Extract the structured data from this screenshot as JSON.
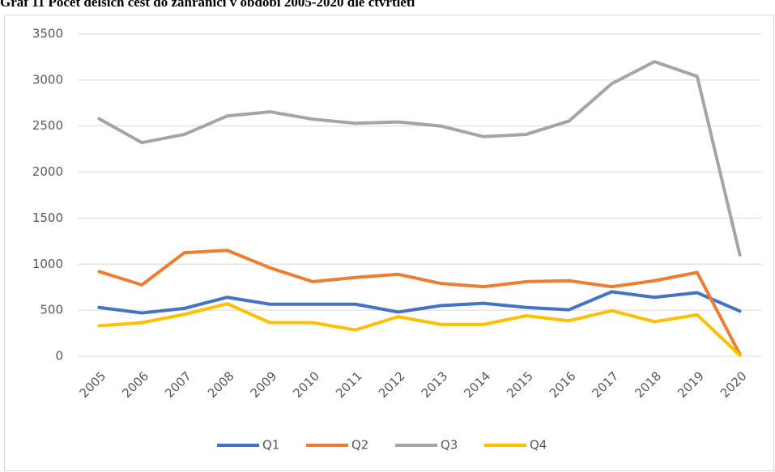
{
  "chart_data": {
    "type": "line",
    "title": "Graf 11 Počet delších cest do zahraničí v období 2005-2020 dle čtvrtletí",
    "categories": [
      "2005",
      "2006",
      "2007",
      "2008",
      "2009",
      "2010",
      "2011",
      "2012",
      "2013",
      "2014",
      "2015",
      "2016",
      "2017",
      "2018",
      "2019",
      "2020"
    ],
    "series": [
      {
        "name": "Q1",
        "color": "#4472c4",
        "values": [
          530,
          470,
          520,
          640,
          565,
          565,
          565,
          480,
          550,
          575,
          530,
          505,
          700,
          640,
          690,
          490
        ]
      },
      {
        "name": "Q2",
        "color": "#ed7d31",
        "values": [
          920,
          775,
          1125,
          1150,
          960,
          810,
          855,
          890,
          790,
          755,
          810,
          820,
          755,
          820,
          910,
          20
        ]
      },
      {
        "name": "Q3",
        "color": "#a5a5a5",
        "values": [
          2580,
          2320,
          2410,
          2610,
          2655,
          2575,
          2530,
          2545,
          2500,
          2385,
          2410,
          2555,
          2960,
          3200,
          3040,
          1100
        ]
      },
      {
        "name": "Q4",
        "color": "#ffc000",
        "values": [
          330,
          365,
          455,
          570,
          365,
          365,
          285,
          430,
          345,
          345,
          440,
          385,
          495,
          375,
          450,
          10
        ]
      }
    ],
    "ylim": [
      0,
      3500
    ],
    "yticks": [
      0,
      500,
      1000,
      1500,
      2000,
      2500,
      3000,
      3500
    ],
    "grid": true,
    "legend": "bottom"
  }
}
